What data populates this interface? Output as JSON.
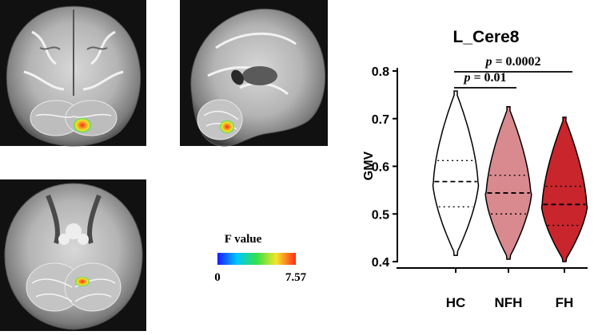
{
  "figure": {
    "colorbar": {
      "title": "F value",
      "min_label": "0",
      "max_label": "7.57",
      "colors": [
        "#1a1aff",
        "#00c8ff",
        "#33e04a",
        "#f5e52a",
        "#ff2a1a"
      ]
    },
    "brain_panels": [
      {
        "view": "coronal"
      },
      {
        "view": "sagittal"
      },
      {
        "view": "axial"
      }
    ]
  },
  "chart_data": {
    "type": "violin",
    "title": "L_Cere8",
    "xlabel": "",
    "ylabel": "GMV",
    "ylim": [
      0.4,
      0.8
    ],
    "yticks": [
      "0.4",
      "0.5",
      "0.6",
      "0.7",
      "0.8"
    ],
    "categories": [
      "HC",
      "NFH",
      "FH"
    ],
    "groups": [
      {
        "label": "HC",
        "color": "#ffffff",
        "min": 0.413,
        "q1": 0.515,
        "median": 0.568,
        "q3": 0.612,
        "max": 0.758
      },
      {
        "label": "NFH",
        "color": "#d98a8f",
        "min": 0.405,
        "q1": 0.5,
        "median": 0.544,
        "q3": 0.581,
        "max": 0.725
      },
      {
        "label": "FH",
        "color": "#c8262c",
        "min": 0.4,
        "q1": 0.476,
        "median": 0.52,
        "q3": 0.558,
        "max": 0.703
      }
    ],
    "annotations": [
      {
        "text_prefix": "p",
        "text": " = 0.01",
        "from": "HC",
        "to": "NFH"
      },
      {
        "text_prefix": "p",
        "text": " = 0.0002",
        "from": "HC",
        "to": "FH"
      }
    ]
  }
}
